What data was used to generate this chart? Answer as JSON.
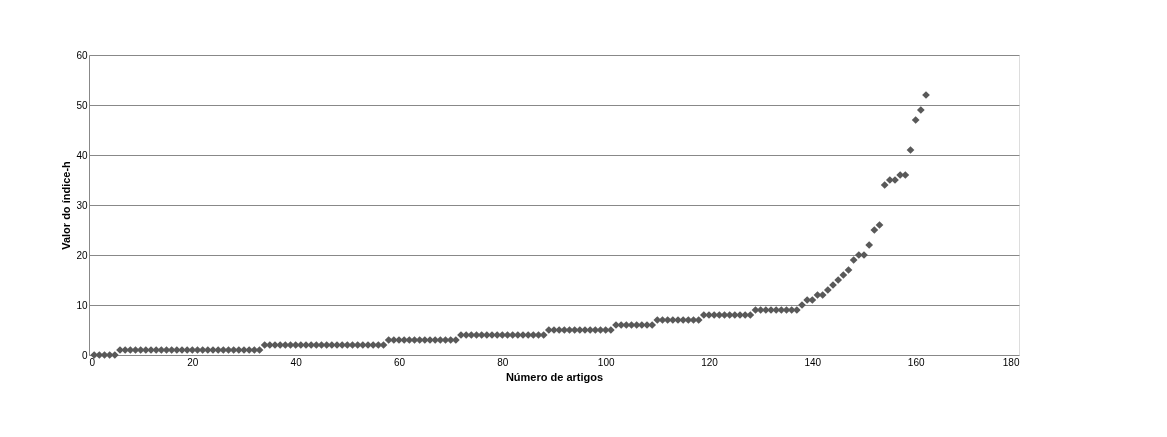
{
  "chart_data": {
    "type": "scatter",
    "xlabel": "Número de artigos",
    "ylabel": "Valor do índice-h",
    "x": [
      1,
      2,
      3,
      4,
      5,
      6,
      7,
      8,
      9,
      10,
      11,
      12,
      13,
      14,
      15,
      16,
      17,
      18,
      19,
      20,
      21,
      22,
      23,
      24,
      25,
      26,
      27,
      28,
      29,
      30,
      31,
      32,
      33,
      34,
      35,
      36,
      37,
      38,
      39,
      40,
      41,
      42,
      43,
      44,
      45,
      46,
      47,
      48,
      49,
      50,
      51,
      52,
      53,
      54,
      55,
      56,
      57,
      58,
      59,
      60,
      61,
      62,
      63,
      64,
      65,
      66,
      67,
      68,
      69,
      70,
      71,
      72,
      73,
      74,
      75,
      76,
      77,
      78,
      79,
      80,
      81,
      82,
      83,
      84,
      85,
      86,
      87,
      88,
      89,
      90,
      91,
      92,
      93,
      94,
      95,
      96,
      97,
      98,
      99,
      100,
      101,
      102,
      103,
      104,
      105,
      106,
      107,
      108,
      109,
      110,
      111,
      112,
      113,
      114,
      115,
      116,
      117,
      118,
      119,
      120,
      121,
      122,
      123,
      124,
      125,
      126,
      127,
      128,
      129,
      130,
      131,
      132,
      133,
      134,
      135,
      136,
      137,
      138,
      139,
      140,
      141,
      142,
      143,
      144,
      145,
      146,
      147,
      148,
      149,
      150,
      151,
      152,
      153,
      154,
      155,
      156,
      157,
      158,
      159,
      160,
      161,
      162
    ],
    "series": [
      {
        "color": "#595959",
        "values": [
          0,
          0,
          0,
          0,
          0,
          1,
          1,
          1,
          1,
          1,
          1,
          1,
          1,
          1,
          1,
          1,
          1,
          1,
          1,
          1,
          1,
          1,
          1,
          1,
          1,
          1,
          1,
          1,
          1,
          1,
          1,
          1,
          1,
          2,
          2,
          2,
          2,
          2,
          2,
          2,
          2,
          2,
          2,
          2,
          2,
          2,
          2,
          2,
          2,
          2,
          2,
          2,
          2,
          2,
          2,
          2,
          2,
          3,
          3,
          3,
          3,
          3,
          3,
          3,
          3,
          3,
          3,
          3,
          3,
          3,
          3,
          4,
          4,
          4,
          4,
          4,
          4,
          4,
          4,
          4,
          4,
          4,
          4,
          4,
          4,
          4,
          4,
          4,
          5,
          5,
          5,
          5,
          5,
          5,
          5,
          5,
          5,
          5,
          5,
          5,
          5,
          6,
          6,
          6,
          6,
          6,
          6,
          6,
          6,
          7,
          7,
          7,
          7,
          7,
          7,
          7,
          7,
          7,
          8,
          8,
          8,
          8,
          8,
          8,
          8,
          8,
          8,
          8,
          9,
          9,
          9,
          9,
          9,
          9,
          9,
          9,
          9,
          10,
          11,
          11,
          12,
          12,
          13,
          14,
          15,
          16,
          17,
          19,
          20,
          20,
          22,
          25,
          26,
          34,
          35,
          35,
          36,
          36,
          41,
          47,
          49,
          52
        ]
      }
    ],
    "xlim": [
      0,
      180
    ],
    "xticks": [
      0,
      20,
      40,
      60,
      80,
      100,
      120,
      140,
      160,
      180
    ],
    "ylim": [
      0,
      60
    ],
    "yticks": [
      0,
      10,
      20,
      30,
      40,
      50,
      60
    ],
    "grid": "y",
    "marker": "diamond"
  }
}
